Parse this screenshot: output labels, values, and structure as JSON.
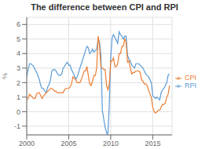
{
  "chart_data": {
    "type": "line",
    "title": "The difference between CPI and RPI",
    "ylabel": "%",
    "xlim": [
      2000,
      2017.3
    ],
    "ylim": [
      -1.6,
      6.5
    ],
    "xticks": [
      2000,
      2005,
      2010,
      2015
    ],
    "yticks": [
      -1,
      0,
      1,
      2,
      3,
      4,
      5,
      6
    ],
    "grid": true,
    "legend": "right",
    "series": [
      {
        "name": "RPI",
        "color": "#5b9bd5",
        "x": [
          2000.0,
          2000.17,
          2000.33,
          2000.5,
          2000.67,
          2000.83,
          2001.0,
          2001.17,
          2001.33,
          2001.5,
          2001.67,
          2001.83,
          2002.0,
          2002.17,
          2002.33,
          2002.5,
          2002.67,
          2002.83,
          2003.0,
          2003.17,
          2003.33,
          2003.5,
          2003.67,
          2003.83,
          2004.0,
          2004.17,
          2004.33,
          2004.5,
          2004.67,
          2004.83,
          2005.0,
          2005.17,
          2005.33,
          2005.5,
          2005.67,
          2005.83,
          2006.0,
          2006.17,
          2006.33,
          2006.5,
          2006.67,
          2006.83,
          2007.0,
          2007.17,
          2007.33,
          2007.5,
          2007.67,
          2007.83,
          2008.0,
          2008.17,
          2008.33,
          2008.5,
          2008.67,
          2008.83,
          2009.0,
          2009.17,
          2009.33,
          2009.5,
          2009.58,
          2009.67,
          2009.75,
          2009.83,
          2010.0,
          2010.17,
          2010.33,
          2010.5,
          2010.67,
          2010.83,
          2011.0,
          2011.17,
          2011.33,
          2011.5,
          2011.67,
          2011.83,
          2012.0,
          2012.17,
          2012.33,
          2012.5,
          2012.67,
          2012.83,
          2013.0,
          2013.17,
          2013.33,
          2013.5,
          2013.67,
          2013.83,
          2014.0,
          2014.17,
          2014.33,
          2014.5,
          2014.67,
          2014.83,
          2015.0,
          2015.17,
          2015.33,
          2015.5,
          2015.67,
          2015.83,
          2016.0,
          2016.17,
          2016.33,
          2016.5,
          2016.67,
          2016.83,
          2017.0
        ],
        "values": [
          2.4,
          2.9,
          3.3,
          3.3,
          3.2,
          3.1,
          2.9,
          2.7,
          2.5,
          2.2,
          1.8,
          1.6,
          1.6,
          1.4,
          1.3,
          1.7,
          1.9,
          2.2,
          2.8,
          2.9,
          2.9,
          2.8,
          2.6,
          2.5,
          2.5,
          2.6,
          3.0,
          3.1,
          3.3,
          3.4,
          3.2,
          3.2,
          2.9,
          2.7,
          2.5,
          2.2,
          2.4,
          2.7,
          3.0,
          3.3,
          3.6,
          3.9,
          4.2,
          4.5,
          4.4,
          4.0,
          4.1,
          4.3,
          4.1,
          4.2,
          4.3,
          5.0,
          4.8,
          3.9,
          0.1,
          -0.5,
          -1.1,
          -1.4,
          -1.6,
          -1.4,
          -0.5,
          0.5,
          3.7,
          5.1,
          5.3,
          5.1,
          4.9,
          4.7,
          5.5,
          5.3,
          5.2,
          5.0,
          5.2,
          5.2,
          3.9,
          3.6,
          3.5,
          3.2,
          3.1,
          3.0,
          3.3,
          3.3,
          3.3,
          3.2,
          3.1,
          3.0,
          2.8,
          2.6,
          2.5,
          2.4,
          2.2,
          2.0,
          1.1,
          1.0,
          0.9,
          1.0,
          0.9,
          0.8,
          1.3,
          1.5,
          1.6,
          1.8,
          2.0,
          2.5,
          2.6
        ]
      },
      {
        "name": "CPI",
        "color": "#ed7d31",
        "x": [
          2000.0,
          2000.17,
          2000.33,
          2000.5,
          2000.67,
          2000.83,
          2001.0,
          2001.17,
          2001.33,
          2001.5,
          2001.67,
          2001.83,
          2002.0,
          2002.17,
          2002.33,
          2002.5,
          2002.67,
          2002.83,
          2003.0,
          2003.17,
          2003.33,
          2003.5,
          2003.67,
          2003.83,
          2004.0,
          2004.17,
          2004.33,
          2004.5,
          2004.67,
          2004.83,
          2005.0,
          2005.17,
          2005.33,
          2005.5,
          2005.67,
          2005.83,
          2006.0,
          2006.17,
          2006.33,
          2006.5,
          2006.67,
          2006.83,
          2007.0,
          2007.17,
          2007.33,
          2007.5,
          2007.67,
          2007.83,
          2008.0,
          2008.17,
          2008.33,
          2008.5,
          2008.67,
          2008.83,
          2009.0,
          2009.17,
          2009.33,
          2009.5,
          2009.67,
          2009.83,
          2010.0,
          2010.17,
          2010.33,
          2010.5,
          2010.67,
          2010.83,
          2011.0,
          2011.17,
          2011.33,
          2011.5,
          2011.67,
          2011.83,
          2012.0,
          2012.17,
          2012.33,
          2012.5,
          2012.67,
          2012.83,
          2013.0,
          2013.17,
          2013.33,
          2013.5,
          2013.67,
          2013.83,
          2014.0,
          2014.17,
          2014.33,
          2014.5,
          2014.67,
          2014.83,
          2015.0,
          2015.17,
          2015.33,
          2015.5,
          2015.67,
          2015.83,
          2016.0,
          2016.17,
          2016.33,
          2016.5,
          2016.67,
          2016.83,
          2017.0
        ],
        "values": [
          0.8,
          0.9,
          1.2,
          1.1,
          1.0,
          0.9,
          0.9,
          1.2,
          1.3,
          1.3,
          1.1,
          0.9,
          1.1,
          1.2,
          1.3,
          1.4,
          1.5,
          1.6,
          1.6,
          1.5,
          1.4,
          1.4,
          1.3,
          1.3,
          1.3,
          1.3,
          1.3,
          1.5,
          1.6,
          1.6,
          1.6,
          1.7,
          1.9,
          2.4,
          2.3,
          2.2,
          2.0,
          2.0,
          2.0,
          2.2,
          2.5,
          2.8,
          2.8,
          3.1,
          2.5,
          1.9,
          1.8,
          2.1,
          2.5,
          2.5,
          3.0,
          5.2,
          4.5,
          3.1,
          3.0,
          2.9,
          2.9,
          1.8,
          1.5,
          1.9,
          3.5,
          3.5,
          3.7,
          3.1,
          3.1,
          3.3,
          4.0,
          4.0,
          4.5,
          4.5,
          5.0,
          4.8,
          3.4,
          3.5,
          3.0,
          2.6,
          2.7,
          2.7,
          2.8,
          2.8,
          2.8,
          2.7,
          2.2,
          2.1,
          1.9,
          1.9,
          1.8,
          1.5,
          1.2,
          1.0,
          0.3,
          0.0,
          -0.1,
          0.0,
          0.1,
          0.1,
          0.3,
          0.5,
          0.5,
          0.6,
          1.0,
          1.2,
          1.8
        ]
      }
    ]
  }
}
